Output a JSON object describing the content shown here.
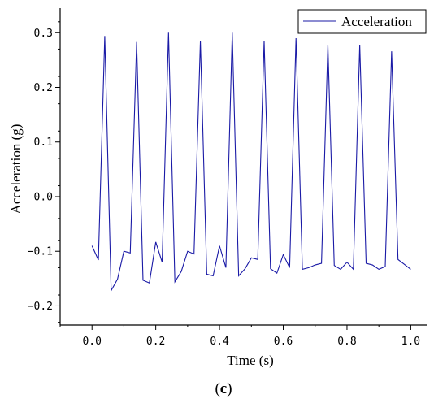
{
  "chart_data": {
    "type": "line",
    "xlabel": "Time (s)",
    "ylabel": "Acceleration (g)",
    "xlim": [
      -0.1,
      1.05
    ],
    "ylim": [
      -0.235,
      0.345
    ],
    "x_ticks": [
      0.0,
      0.2,
      0.4,
      0.6,
      0.8,
      1.0
    ],
    "x_tick_labels": [
      "0.0",
      "0.2",
      "0.4",
      "0.6",
      "0.8",
      "1.0"
    ],
    "y_ticks": [
      -0.2,
      -0.1,
      0.0,
      0.1,
      0.2,
      0.3
    ],
    "y_tick_labels": [
      "-0.2",
      "-0.1",
      "0.0",
      "0.1",
      "0.2",
      "0.3"
    ],
    "legend_position": "top-right",
    "grid": false,
    "series_color": "#1a1aa6",
    "series": [
      {
        "name": "Acceleration",
        "x": [
          0.0,
          0.02,
          0.04,
          0.06,
          0.08,
          0.1,
          0.12,
          0.14,
          0.16,
          0.18,
          0.2,
          0.22,
          0.24,
          0.26,
          0.28,
          0.3,
          0.32,
          0.34,
          0.36,
          0.38,
          0.4,
          0.42,
          0.44,
          0.46,
          0.48,
          0.5,
          0.52,
          0.54,
          0.56,
          0.58,
          0.6,
          0.62,
          0.64,
          0.66,
          0.68,
          0.7,
          0.72,
          0.74,
          0.76,
          0.78,
          0.8,
          0.82,
          0.84,
          0.86,
          0.88,
          0.9,
          0.92,
          0.94,
          0.96,
          0.98,
          1.0
        ],
        "values": [
          -0.09,
          -0.116,
          0.294,
          -0.172,
          -0.151,
          -0.1,
          -0.103,
          0.283,
          -0.153,
          -0.158,
          -0.083,
          -0.12,
          0.3,
          -0.156,
          -0.137,
          -0.1,
          -0.105,
          0.285,
          -0.142,
          -0.145,
          -0.09,
          -0.13,
          0.3,
          -0.145,
          -0.132,
          -0.112,
          -0.115,
          0.285,
          -0.132,
          -0.14,
          -0.106,
          -0.13,
          0.29,
          -0.133,
          -0.13,
          -0.125,
          -0.122,
          0.278,
          -0.126,
          -0.133,
          -0.12,
          -0.133,
          0.278,
          -0.122,
          -0.125,
          -0.133,
          -0.128,
          0.266,
          -0.115,
          -0.124,
          -0.133
        ]
      }
    ]
  },
  "caption": {
    "open": "(",
    "letter": "c",
    "close": ")"
  }
}
